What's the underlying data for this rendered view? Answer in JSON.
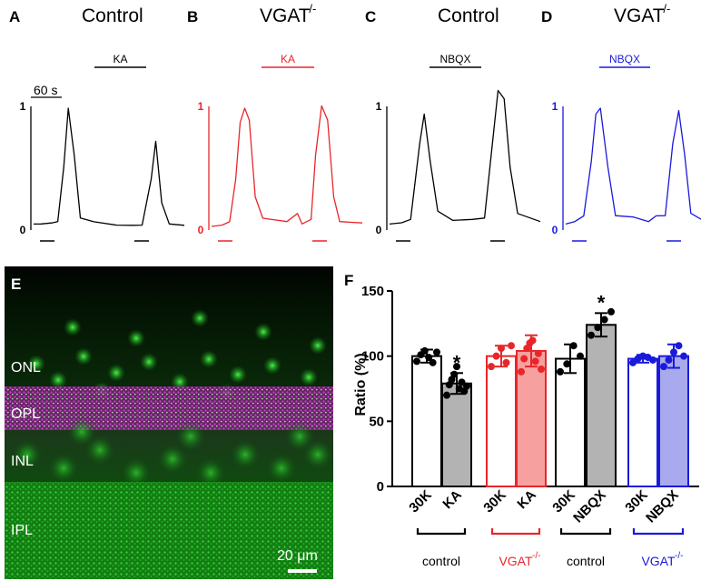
{
  "colors": {
    "control": "#000000",
    "vgat": "#e8262a",
    "nbqx": "#1a1adb",
    "kaFill": "#b3b3b3",
    "vgatFill": "#f7a0a0",
    "nbqxFill": "#a9a9ee"
  },
  "traces": [
    {
      "letter": "A",
      "title": "Control",
      "title_sup": "",
      "drug": "KA",
      "color": "#000000",
      "scale_label": "60 s",
      "y_top": "1",
      "y_bottom": "0"
    },
    {
      "letter": "B",
      "title": "VGAT",
      "title_sup": "-/-",
      "drug": "KA",
      "color": "#e8262a",
      "scale_label": "",
      "y_top": "1",
      "y_bottom": "0"
    },
    {
      "letter": "C",
      "title": "Control",
      "title_sup": "",
      "drug": "NBQX",
      "color": "#000000",
      "scale_label": "",
      "y_top": "1",
      "y_bottom": "0"
    },
    {
      "letter": "D",
      "title": "VGAT",
      "title_sup": "-/-",
      "drug": "NBQX",
      "color": "#1a1adb",
      "scale_label": "",
      "y_top": "1",
      "y_bottom": "0"
    }
  ],
  "micrograph": {
    "letter": "E",
    "layers": [
      "ONL",
      "OPL",
      "INL",
      "IPL"
    ],
    "scale_bar": "20 μm"
  },
  "chart_data": {
    "type": "bar",
    "panel": "F",
    "ylabel": "Ratio (%)",
    "ylim": [
      0,
      150
    ],
    "yticks": [
      0,
      50,
      100,
      150
    ],
    "categories": [
      "30K",
      "KA",
      "30K",
      "KA",
      "30K",
      "NBQX",
      "30K",
      "NBQX"
    ],
    "values": [
      100,
      79,
      100,
      104,
      98,
      124,
      98,
      100
    ],
    "errors": [
      5,
      8,
      8,
      12,
      11,
      9,
      3,
      9
    ],
    "significant": [
      false,
      true,
      false,
      false,
      false,
      true,
      false,
      false
    ],
    "points": [
      [
        96,
        101,
        104,
        99,
        95,
        103
      ],
      [
        70,
        78,
        82,
        86,
        92,
        75,
        80,
        73,
        77
      ],
      [
        92,
        100,
        106,
        95,
        108
      ],
      [
        88,
        98,
        106,
        110,
        112,
        96,
        102,
        90
      ],
      [
        88,
        94,
        108,
        100
      ],
      [
        116,
        122,
        128,
        134
      ],
      [
        95,
        98,
        100,
        99,
        97
      ],
      [
        92,
        97,
        103,
        108,
        100
      ]
    ],
    "groups": [
      {
        "label": "control",
        "sup": ""
      },
      {
        "label": "VGAT",
        "sup": " -/-"
      },
      {
        "label": "control",
        "sup": ""
      },
      {
        "label": "VGAT",
        "sup": " -/-"
      }
    ],
    "star": "*"
  }
}
